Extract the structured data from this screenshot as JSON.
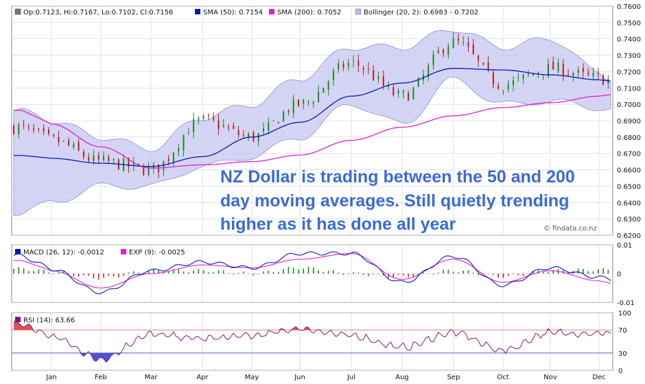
{
  "colors": {
    "sma50": "#0a18b4",
    "sma200": "#e020d0",
    "bollinger_fill": "#c9c9f2",
    "bollinger_edge": "#8d8dd8",
    "candle_up": "#1a8a1a",
    "candle_down": "#c01818",
    "macd": "#0a18b4",
    "exp": "#e020d0",
    "hist_pos": "#1a8a1a",
    "hist_neg": "#d02020",
    "rsi": "#7a1a7a",
    "note": "#3a6bd6",
    "grid": "#cfcfcf"
  },
  "price_panel": {
    "legend": {
      "ohlc": "Op:0.7123, Hi:0.7167, Lo:0.7102, Cl:0.7156",
      "sma50": "SMA (50): 0.7154",
      "sma200": "SMA (200): 0.7052",
      "bollinger": "Bollinger (20, 2): 0.6983 - 0.7202"
    },
    "annotation": [
      "NZ Dollar is trading between the 50 and 200",
      "day moving averages. Still quietly trending",
      "higher as it has done all year"
    ],
    "source": "© findata.co.nz"
  },
  "macd_panel": {
    "legend": {
      "macd": "MACD (26, 12): -0.0012",
      "exp": "EXP (9): -0.0025"
    }
  },
  "rsi_panel": {
    "legend": {
      "rsi": "RSI (14): 63.66"
    }
  },
  "chart_data": [
    {
      "type": "line",
      "panel": "price",
      "description_free": true,
      "x": [
        "Jan",
        "Feb",
        "Mar",
        "Apr",
        "May",
        "Jun",
        "Jul",
        "Aug",
        "Sep",
        "Oct",
        "Nov",
        "Dec"
      ],
      "ylim": [
        0.62,
        0.76
      ],
      "yticks": [
        "0.7600",
        "0.7500",
        "0.7400",
        "0.7300",
        "0.7200",
        "0.7100",
        "0.7000",
        "0.6900",
        "0.6800",
        "0.6700",
        "0.6600",
        "0.6500",
        "0.6400",
        "0.6300",
        "0.6200"
      ],
      "series": [
        {
          "name": "SMA (50)",
          "values": [
            0.667,
            0.664,
            0.662,
            0.668,
            0.68,
            0.689,
            0.705,
            0.713,
            0.722,
            0.721,
            0.718,
            0.715
          ]
        },
        {
          "name": "SMA (200)",
          "values": [
            0.688,
            0.674,
            0.661,
            0.663,
            0.665,
            0.669,
            0.678,
            0.686,
            0.693,
            0.698,
            0.701,
            0.705
          ]
        },
        {
          "name": "Close",
          "values": [
            0.678,
            0.665,
            0.66,
            0.69,
            0.68,
            0.7,
            0.725,
            0.705,
            0.738,
            0.712,
            0.722,
            0.716
          ]
        },
        {
          "name": "Bollinger upper",
          "values": [
            0.69,
            0.68,
            0.673,
            0.692,
            0.7,
            0.716,
            0.735,
            0.735,
            0.746,
            0.735,
            0.74,
            0.72
          ]
        },
        {
          "name": "Bollinger lower",
          "values": [
            0.64,
            0.65,
            0.65,
            0.662,
            0.668,
            0.68,
            0.7,
            0.688,
            0.715,
            0.7,
            0.702,
            0.698
          ]
        }
      ]
    },
    {
      "type": "line",
      "panel": "macd",
      "x": [
        "Jan",
        "Feb",
        "Mar",
        "Apr",
        "May",
        "Jun",
        "Jul",
        "Aug",
        "Sep",
        "Oct",
        "Nov",
        "Dec"
      ],
      "ylim": [
        -0.01,
        0.01
      ],
      "yticks": [
        "0.01",
        "0",
        "-0.01"
      ],
      "series": [
        {
          "name": "MACD (26, 12)",
          "values": [
            0.0015,
            -0.0065,
            0.001,
            0.004,
            0.002,
            0.007,
            0.007,
            -0.003,
            0.006,
            -0.004,
            0.002,
            -0.0012
          ]
        },
        {
          "name": "EXP (9)",
          "values": [
            0.001,
            -0.005,
            0.0,
            0.003,
            0.002,
            0.005,
            0.007,
            -0.002,
            0.005,
            -0.003,
            0.001,
            -0.0025
          ]
        }
      ]
    },
    {
      "type": "line",
      "panel": "rsi",
      "x": [
        "Jan",
        "Feb",
        "Mar",
        "Apr",
        "May",
        "Jun",
        "Jul",
        "Aug",
        "Sep",
        "Oct",
        "Nov",
        "Dec"
      ],
      "ylim": [
        0,
        100
      ],
      "yticks": [
        "100",
        "70",
        "30",
        "0"
      ],
      "series": [
        {
          "name": "RSI (14)",
          "values": [
            58,
            20,
            62,
            55,
            60,
            72,
            60,
            40,
            65,
            35,
            65,
            64
          ]
        }
      ]
    }
  ]
}
